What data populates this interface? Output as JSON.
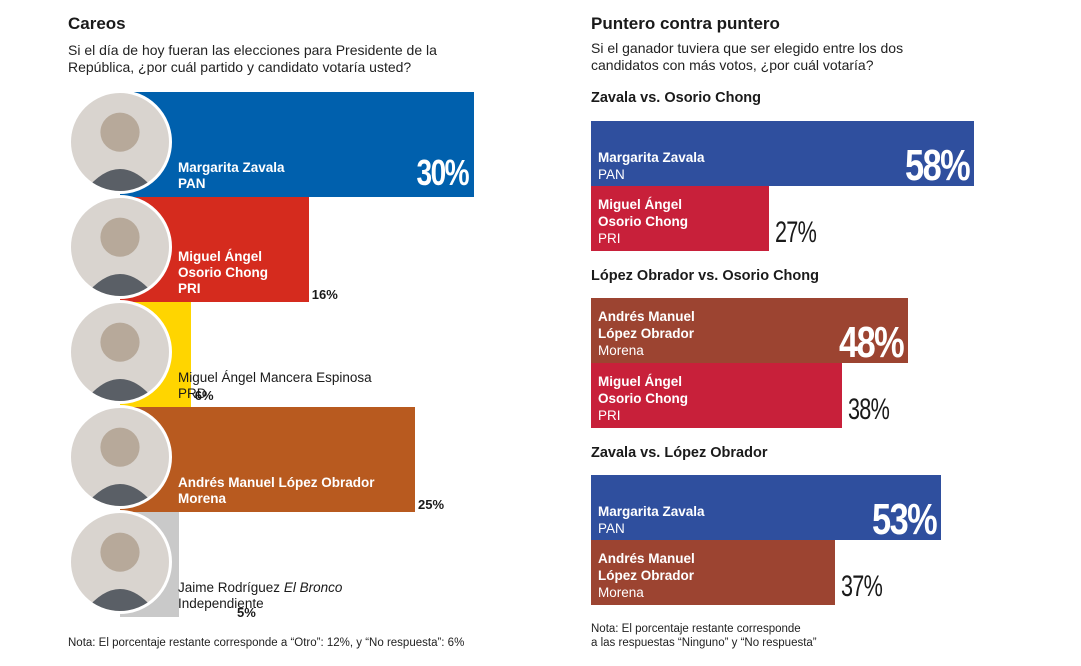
{
  "left": {
    "title": "Careos",
    "subtitle_line1": "Si el día de hoy fueran las elecciones para Presidente de la",
    "subtitle_line2": "República, ¿por cuál partido y candidato votaría usted?",
    "note": "Nota: El porcentaje restante corresponde a “Otro”: 12%, y “No respuesta”: 6%"
  },
  "right": {
    "title": "Puntero contra puntero",
    "subtitle_line1": "Si el ganador tuviera que ser elegido entre los dos",
    "subtitle_line2": "candidatos con más votos, ¿por cuál votaría?",
    "note_line1": "Nota: El porcentaje restante corresponde",
    "note_line2": "a las respuestas “Ninguno” y “No respuesta”"
  },
  "chart_data": [
    {
      "type": "bar",
      "orientation": "horizontal",
      "categories": [
        "Margarita Zavala",
        "Miguel Ángel Osorio Chong",
        "Miguel Ángel Mancera Espinosa",
        "Andrés Manuel López Obrador",
        "Jaime Rodríguez El Bronco"
      ],
      "values": [
        30,
        16,
        6,
        25,
        5
      ],
      "bars": [
        {
          "name_line1": "Margarita Zavala",
          "name_line2": "",
          "party": "PAN",
          "value": 30,
          "label": "30%",
          "color": "#0060ad"
        },
        {
          "name_line1": "Miguel Ángel",
          "name_line2": "Osorio Chong",
          "party": "PRI",
          "value": 16,
          "label": "16%",
          "color": "#d52b1e"
        },
        {
          "name_line1": "Miguel Ángel Mancera Espinosa",
          "name_line2": "",
          "party": "PRD",
          "value": 6,
          "label": "6%",
          "color": "#ffd500"
        },
        {
          "name_line1": "Andrés Manuel López Obrador",
          "name_line2": "",
          "party": "Morena",
          "value": 25,
          "label": "25%",
          "color": "#b85a1f"
        },
        {
          "name_line1": "Jaime Rodríguez ",
          "name_italic": "El Bronco",
          "name_line2": "",
          "party": "Independiente",
          "value": 5,
          "label": "5%",
          "color": "#c9c9c9"
        }
      ]
    },
    {
      "type": "bar",
      "orientation": "horizontal",
      "title": "Zavala vs. Osorio Chong",
      "categories": [
        "Margarita Zavala",
        "Miguel Ángel Osorio Chong"
      ],
      "values": [
        58,
        27
      ],
      "bars": [
        {
          "name_line1": "Margarita Zavala",
          "name_line2": "",
          "party": "PAN",
          "value": 58,
          "label": "58%",
          "color": "#2f4f9e"
        },
        {
          "name_line1": "Miguel Ángel",
          "name_line2": "Osorio Chong",
          "party": "PRI",
          "value": 27,
          "label": "27%",
          "color": "#c8203a"
        }
      ]
    },
    {
      "type": "bar",
      "orientation": "horizontal",
      "title": "López Obrador vs. Osorio Chong",
      "categories": [
        "Andrés Manuel López Obrador",
        "Miguel Ángel Osorio Chong"
      ],
      "values": [
        48,
        38
      ],
      "bars": [
        {
          "name_line1": "Andrés Manuel",
          "name_line2": "López Obrador",
          "party": "Morena",
          "value": 48,
          "label": "48%",
          "color": "#9c4431"
        },
        {
          "name_line1": "Miguel Ángel",
          "name_line2": "Osorio Chong",
          "party": "PRI",
          "value": 38,
          "label": "38%",
          "color": "#c8203a"
        }
      ]
    },
    {
      "type": "bar",
      "orientation": "horizontal",
      "title": "Zavala vs. López Obrador",
      "categories": [
        "Margarita Zavala",
        "Andrés Manuel López Obrador"
      ],
      "values": [
        53,
        37
      ],
      "bars": [
        {
          "name_line1": "Margarita Zavala",
          "name_line2": "",
          "party": "PAN",
          "value": 53,
          "label": "53%",
          "color": "#2f4f9e"
        },
        {
          "name_line1": "Andrés Manuel",
          "name_line2": "López Obrador",
          "party": "Morena",
          "value": 37,
          "label": "37%",
          "color": "#9c4431"
        }
      ]
    }
  ]
}
